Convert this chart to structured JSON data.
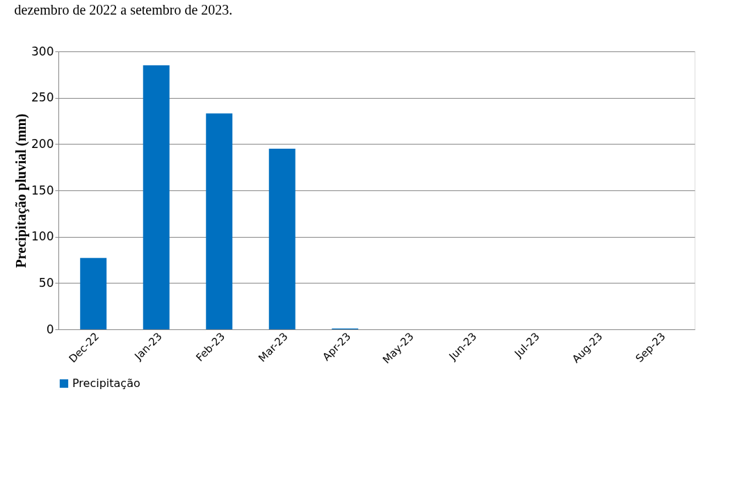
{
  "chart_data": {
    "type": "bar",
    "annotations": [
      "dezembro de 2022 a setembro de 2023."
    ],
    "ylabel": "Precipitação pluvial (mm)",
    "categories": [
      "Dec-22",
      "Jan-23",
      "Feb-23",
      "Mar-23",
      "Apr-23",
      "May-23",
      "Jun-23",
      "Jul-23",
      "Aug-23",
      "Sep-23"
    ],
    "series": [
      {
        "name": "Precipitação",
        "color": "#0070c0",
        "values": [
          77,
          285,
          233,
          195,
          1,
          0,
          0,
          0,
          0,
          0
        ]
      }
    ],
    "ylim": [
      0,
      300
    ],
    "yticks": [
      0,
      50,
      100,
      150,
      200,
      250,
      300
    ],
    "grid": "y",
    "legend": "bottom"
  }
}
